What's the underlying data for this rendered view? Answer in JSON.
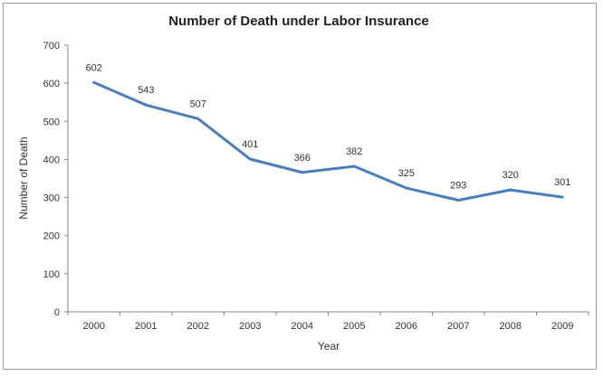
{
  "chart_data": {
    "type": "line",
    "title": "Number of Death under Labor Insurance",
    "xlabel": "Year",
    "ylabel": "Number of Death",
    "x": [
      "2000",
      "2001",
      "2002",
      "2003",
      "2004",
      "2005",
      "2006",
      "2007",
      "2008",
      "2009"
    ],
    "series": [
      {
        "values": [
          602,
          543,
          507,
          401,
          366,
          382,
          325,
          293,
          320,
          301
        ],
        "labels": [
          "602",
          "543",
          "507",
          "401",
          "366",
          "382",
          "325",
          "293",
          "320",
          "301"
        ],
        "color": "#4a7ebb"
      }
    ],
    "ylim": [
      0,
      700
    ],
    "yticks": [
      "0",
      "100",
      "200",
      "300",
      "400",
      "500",
      "600",
      "700"
    ],
    "grid": false,
    "legend": "none"
  }
}
